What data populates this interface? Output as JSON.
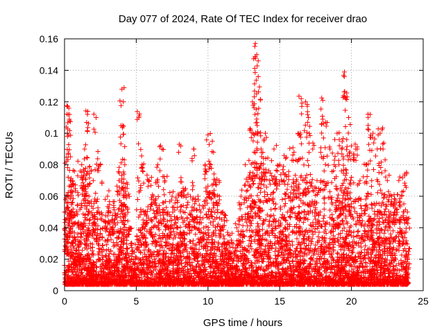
{
  "chart_data": {
    "type": "scatter",
    "title": "Day 077 of 2024, Rate Of TEC Index for receiver drao",
    "xlabel": "GPS time / hours",
    "ylabel": "ROTI / TECUs",
    "xlim": [
      0,
      25
    ],
    "ylim": [
      0,
      0.16
    ],
    "xticks": [
      0,
      5,
      10,
      15,
      20,
      25
    ],
    "yticks": [
      0,
      0.02,
      0.04,
      0.06,
      0.08,
      0.1,
      0.12,
      0.14,
      0.16
    ],
    "xtick_labels": [
      "0",
      "5",
      "10",
      "15",
      "20",
      "25"
    ],
    "ytick_labels": [
      "0",
      "0.02",
      "0.04",
      "0.06",
      "0.08",
      "0.1",
      "0.12",
      "0.14",
      "0.16"
    ],
    "grid": true,
    "marker": "+",
    "color": "#ff0000",
    "series": [
      {
        "x": [
          0.1,
          0.2,
          0.3,
          0.35,
          0.4,
          0.5,
          0.6,
          0.75,
          0.9,
          1.0,
          1.2,
          1.4,
          1.5,
          1.6,
          1.7,
          1.8,
          2.0,
          2.2,
          2.5,
          2.8,
          3.0,
          3.2,
          3.5,
          3.8,
          4.0,
          4.1,
          4.2,
          4.3,
          4.5,
          4.8,
          5.2,
          5.4,
          5.6,
          5.9,
          6.2,
          6.5,
          6.8,
          7.0,
          7.2,
          7.5,
          7.8,
          8.0,
          8.3,
          8.6,
          9.0,
          9.3,
          9.5,
          9.8,
          10.0,
          10.2,
          10.3,
          10.5,
          10.8,
          11.0,
          11.3,
          11.6,
          12.0,
          12.3,
          12.6,
          12.9,
          13.1,
          13.3,
          13.4,
          13.5,
          13.7,
          14.0,
          14.3,
          14.6,
          15.0,
          15.3,
          15.6,
          16.0,
          16.3,
          16.5,
          16.8,
          17.0,
          17.3,
          17.6,
          18.0,
          18.2,
          18.5,
          18.8,
          19.0,
          19.3,
          19.5,
          19.6,
          19.8,
          20.0,
          20.3,
          20.6,
          21.0,
          21.3,
          21.5,
          21.8,
          22.0,
          22.2,
          22.5,
          22.8,
          23.0,
          23.3,
          23.5,
          23.7,
          23.9
        ],
        "y": [
          0.045,
          0.1,
          0.116,
          0.112,
          0.07,
          0.05,
          0.068,
          0.03,
          0.02,
          0.04,
          0.08,
          0.09,
          0.062,
          0.112,
          0.06,
          0.03,
          0.07,
          0.11,
          0.08,
          0.04,
          0.06,
          0.05,
          0.045,
          0.07,
          0.128,
          0.12,
          0.08,
          0.06,
          0.04,
          0.02,
          0.111,
          0.08,
          0.05,
          0.07,
          0.06,
          0.08,
          0.09,
          0.07,
          0.05,
          0.06,
          0.04,
          0.093,
          0.06,
          0.04,
          0.09,
          0.06,
          0.05,
          0.08,
          0.099,
          0.08,
          0.095,
          0.07,
          0.06,
          0.04,
          0.03,
          0.02,
          0.04,
          0.06,
          0.08,
          0.102,
          0.12,
          0.157,
          0.15,
          0.146,
          0.09,
          0.1,
          0.07,
          0.09,
          0.08,
          0.07,
          0.06,
          0.088,
          0.1,
          0.122,
          0.12,
          0.11,
          0.09,
          0.07,
          0.121,
          0.107,
          0.09,
          0.08,
          0.1,
          0.09,
          0.136,
          0.122,
          0.11,
          0.092,
          0.09,
          0.07,
          0.08,
          0.112,
          0.1,
          0.09,
          0.1,
          0.09,
          0.07,
          0.06,
          0.05,
          0.07,
          0.06,
          0.073,
          0.05
        ]
      }
    ]
  }
}
